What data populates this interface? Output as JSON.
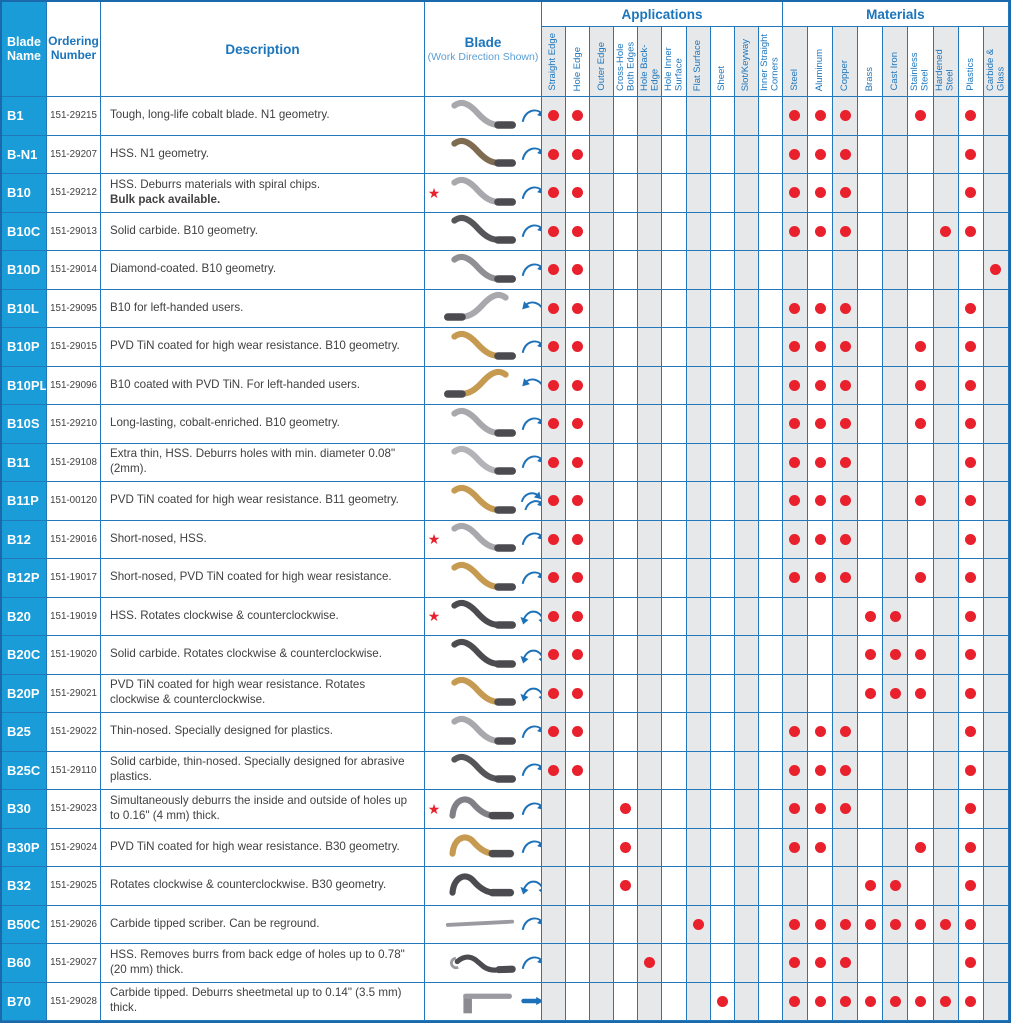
{
  "header": {
    "blade_name": "Blade\nName",
    "ordering_number": "Ordering\nNumber",
    "description": "Description",
    "blade": "Blade",
    "blade_sub": "(Work Direction Shown)",
    "applications": "Applications",
    "materials": "Materials"
  },
  "columns": {
    "applications": [
      "Straight Edge",
      "Hole Edge",
      "Outer Edge",
      "Cross-Hole Both Edges",
      "Hole Back-Edge",
      "Hole Inner Surface",
      "Flat Surface",
      "Sheet",
      "Slot/Keyway",
      "Inner Straight Corners"
    ],
    "materials": [
      "Steel",
      "Aluminum",
      "Copper",
      "Brass",
      "Cast Iron",
      "Stainless Steel",
      "Hardened Steel",
      "Plastics",
      "Carbide & Glass"
    ]
  },
  "icons": {
    "star": "★"
  },
  "colors": {
    "border": "#2377bb",
    "header_text": "#1b75bc",
    "name_bg": "#199cd8",
    "dot": "#e8212d",
    "star": "#e8212d",
    "shade": "#e7e8ea",
    "arrow": "#1d71b8"
  },
  "rows": [
    {
      "name": "B1",
      "order": "151-29215",
      "desc": "Tough, long-life cobalt blade. N1 geometry.",
      "desc_bold": "",
      "star": false,
      "shape": "s",
      "color": "#a9a9ad",
      "dir": "right",
      "arrow": "ccw",
      "apps": [
        1,
        1,
        0,
        0,
        0,
        0,
        0,
        0,
        0,
        0
      ],
      "mats": [
        1,
        1,
        1,
        0,
        0,
        1,
        0,
        1,
        0
      ]
    },
    {
      "name": "B-N1",
      "order": "151-29207",
      "desc": "HSS. N1 geometry.",
      "desc_bold": "",
      "star": false,
      "shape": "s",
      "color": "#7e6b50",
      "dir": "right",
      "arrow": "ccw",
      "apps": [
        1,
        1,
        0,
        0,
        0,
        0,
        0,
        0,
        0,
        0
      ],
      "mats": [
        1,
        1,
        1,
        0,
        0,
        0,
        0,
        1,
        0
      ]
    },
    {
      "name": "B10",
      "order": "151-29212",
      "desc": "HSS. Deburrs materials with spiral chips.",
      "desc_bold": "Bulk pack available.",
      "star": true,
      "shape": "s",
      "color": "#a9a9ad",
      "dir": "right",
      "arrow": "ccw",
      "apps": [
        1,
        1,
        0,
        0,
        0,
        0,
        0,
        0,
        0,
        0
      ],
      "mats": [
        1,
        1,
        1,
        0,
        0,
        0,
        0,
        1,
        0
      ]
    },
    {
      "name": "B10C",
      "order": "151-29013",
      "desc": "Solid carbide. B10 geometry.",
      "desc_bold": "",
      "star": false,
      "shape": "s",
      "color": "#55555a",
      "dir": "right",
      "arrow": "ccw",
      "apps": [
        1,
        1,
        0,
        0,
        0,
        0,
        0,
        0,
        0,
        0
      ],
      "mats": [
        1,
        1,
        1,
        0,
        0,
        0,
        1,
        1,
        0
      ]
    },
    {
      "name": "B10D",
      "order": "151-29014",
      "desc": "Diamond-coated. B10 geometry.",
      "desc_bold": "",
      "star": false,
      "shape": "s",
      "color": "#8f8f94",
      "dir": "right",
      "arrow": "ccw",
      "apps": [
        1,
        1,
        0,
        0,
        0,
        0,
        0,
        0,
        0,
        0
      ],
      "mats": [
        0,
        0,
        0,
        0,
        0,
        0,
        0,
        0,
        1
      ]
    },
    {
      "name": "B10L",
      "order": "151-29095",
      "desc": "B10 for left-handed users.",
      "desc_bold": "",
      "star": false,
      "shape": "s",
      "color": "#a9a9ad",
      "dir": "left",
      "arrow": "ccw-left",
      "apps": [
        1,
        1,
        0,
        0,
        0,
        0,
        0,
        0,
        0,
        0
      ],
      "mats": [
        1,
        1,
        1,
        0,
        0,
        0,
        0,
        1,
        0
      ]
    },
    {
      "name": "B10P",
      "order": "151-29015",
      "desc": "PVD TiN coated for high wear resistance. B10 geometry.",
      "desc_bold": "",
      "star": false,
      "shape": "s",
      "color": "#c69a50",
      "dir": "right",
      "arrow": "ccw",
      "apps": [
        1,
        1,
        0,
        0,
        0,
        0,
        0,
        0,
        0,
        0
      ],
      "mats": [
        1,
        1,
        1,
        0,
        0,
        1,
        0,
        1,
        0
      ]
    },
    {
      "name": "B10PL",
      "order": "151-29096",
      "desc": "B10 coated with PVD TiN. For left-handed users.",
      "desc_bold": "",
      "star": false,
      "shape": "s",
      "color": "#c69a50",
      "dir": "left",
      "arrow": "ccw-left",
      "apps": [
        1,
        1,
        0,
        0,
        0,
        0,
        0,
        0,
        0,
        0
      ],
      "mats": [
        1,
        1,
        1,
        0,
        0,
        1,
        0,
        1,
        0
      ]
    },
    {
      "name": "B10S",
      "order": "151-29210",
      "desc": "Long-lasting, cobalt-enriched. B10 geometry.",
      "desc_bold": "",
      "star": false,
      "shape": "s",
      "color": "#a9a9ad",
      "dir": "right",
      "arrow": "ccw",
      "apps": [
        1,
        1,
        0,
        0,
        0,
        0,
        0,
        0,
        0,
        0
      ],
      "mats": [
        1,
        1,
        1,
        0,
        0,
        1,
        0,
        1,
        0
      ]
    },
    {
      "name": "B11",
      "order": "151-29108",
      "desc": "Extra thin, HSS. Deburrs holes with min. diameter 0.08\" (2mm).",
      "desc_bold": "",
      "star": false,
      "shape": "s",
      "color": "#b4b4b8",
      "dir": "right",
      "arrow": "ccw",
      "apps": [
        1,
        1,
        0,
        0,
        0,
        0,
        0,
        0,
        0,
        0
      ],
      "mats": [
        1,
        1,
        1,
        0,
        0,
        0,
        0,
        1,
        0
      ]
    },
    {
      "name": "B11P",
      "order": "151-00120",
      "desc": "PVD TiN coated for high wear resistance. B11 geometry.",
      "desc_bold": "",
      "star": false,
      "shape": "s",
      "color": "#c69a50",
      "dir": "right",
      "arrow": "double",
      "apps": [
        1,
        1,
        0,
        0,
        0,
        0,
        0,
        0,
        0,
        0
      ],
      "mats": [
        1,
        1,
        1,
        0,
        0,
        1,
        0,
        1,
        0
      ]
    },
    {
      "name": "B12",
      "order": "151-29016",
      "desc": "Short-nosed, HSS.",
      "desc_bold": "",
      "star": true,
      "shape": "s",
      "color": "#a9a9ad",
      "dir": "right",
      "arrow": "ccw",
      "apps": [
        1,
        1,
        0,
        0,
        0,
        0,
        0,
        0,
        0,
        0
      ],
      "mats": [
        1,
        1,
        1,
        0,
        0,
        0,
        0,
        1,
        0
      ]
    },
    {
      "name": "B12P",
      "order": "151-19017",
      "desc": "Short-nosed, PVD TiN coated for high wear resistance.",
      "desc_bold": "",
      "star": false,
      "shape": "s",
      "color": "#c69a50",
      "dir": "right",
      "arrow": "ccw",
      "apps": [
        1,
        1,
        0,
        0,
        0,
        0,
        0,
        0,
        0,
        0
      ],
      "mats": [
        1,
        1,
        1,
        0,
        0,
        1,
        0,
        1,
        0
      ]
    },
    {
      "name": "B20",
      "order": "151-19019",
      "desc": "HSS. Rotates clockwise & counterclockwise.",
      "desc_bold": "",
      "star": true,
      "shape": "s",
      "color": "#4c4c50",
      "dir": "right",
      "arrow": "both",
      "apps": [
        1,
        1,
        0,
        0,
        0,
        0,
        0,
        0,
        0,
        0
      ],
      "mats": [
        0,
        0,
        0,
        1,
        1,
        0,
        0,
        1,
        0
      ]
    },
    {
      "name": "B20C",
      "order": "151-19020",
      "desc": "Solid carbide. Rotates clockwise & counterclockwise.",
      "desc_bold": "",
      "star": false,
      "shape": "s",
      "color": "#4c4c50",
      "dir": "right",
      "arrow": "both",
      "apps": [
        1,
        1,
        0,
        0,
        0,
        0,
        0,
        0,
        0,
        0
      ],
      "mats": [
        0,
        0,
        0,
        1,
        1,
        1,
        0,
        1,
        0
      ]
    },
    {
      "name": "B20P",
      "order": "151-29021",
      "desc": "PVD TiN coated for high wear resistance. Rotates clockwise & counterclockwise.",
      "desc_bold": "",
      "star": false,
      "shape": "s",
      "color": "#c69a50",
      "dir": "right",
      "arrow": "both",
      "apps": [
        1,
        1,
        0,
        0,
        0,
        0,
        0,
        0,
        0,
        0
      ],
      "mats": [
        0,
        0,
        0,
        1,
        1,
        1,
        0,
        1,
        0
      ]
    },
    {
      "name": "B25",
      "order": "151-29022",
      "desc": "Thin-nosed. Specially designed for plastics.",
      "desc_bold": "",
      "star": false,
      "shape": "s",
      "color": "#a9a9ad",
      "dir": "right",
      "arrow": "ccw",
      "apps": [
        1,
        1,
        0,
        0,
        0,
        0,
        0,
        0,
        0,
        0
      ],
      "mats": [
        1,
        1,
        1,
        0,
        0,
        0,
        0,
        1,
        0
      ]
    },
    {
      "name": "B25C",
      "order": "151-29110",
      "desc": "Solid carbide, thin-nosed. Specially designed for abrasive plastics.",
      "desc_bold": "",
      "star": false,
      "shape": "s",
      "color": "#55555a",
      "dir": "right",
      "arrow": "ccw",
      "apps": [
        1,
        1,
        0,
        0,
        0,
        0,
        0,
        0,
        0,
        0
      ],
      "mats": [
        1,
        1,
        1,
        0,
        0,
        0,
        0,
        1,
        0
      ]
    },
    {
      "name": "B30",
      "order": "151-29023",
      "desc": "Simultaneously deburrs the inside and outside of holes up to 0.16\" (4 mm) thick.",
      "desc_bold": "",
      "star": true,
      "shape": "hump",
      "color": "#808086",
      "dir": "right",
      "arrow": "ccw",
      "apps": [
        0,
        0,
        0,
        1,
        0,
        0,
        0,
        0,
        0,
        0
      ],
      "mats": [
        1,
        1,
        1,
        0,
        0,
        0,
        0,
        1,
        0
      ]
    },
    {
      "name": "B30P",
      "order": "151-29024",
      "desc": "PVD TiN coated for high wear resistance. B30 geometry.",
      "desc_bold": "",
      "star": false,
      "shape": "hump",
      "color": "#c69a50",
      "dir": "right",
      "arrow": "ccw",
      "apps": [
        0,
        0,
        0,
        1,
        0,
        0,
        0,
        0,
        0,
        0
      ],
      "mats": [
        1,
        1,
        0,
        0,
        0,
        1,
        0,
        1,
        0
      ]
    },
    {
      "name": "B32",
      "order": "151-29025",
      "desc": "Rotates clockwise & counterclockwise. B30 geometry.",
      "desc_bold": "",
      "star": false,
      "shape": "hump",
      "color": "#4c4c50",
      "dir": "right",
      "arrow": "both",
      "apps": [
        0,
        0,
        0,
        1,
        0,
        0,
        0,
        0,
        0,
        0
      ],
      "mats": [
        0,
        0,
        0,
        1,
        1,
        0,
        0,
        1,
        0
      ]
    },
    {
      "name": "B50C",
      "order": "151-29026",
      "desc": "Carbide tipped scriber. Can be reground.",
      "desc_bold": "",
      "star": false,
      "shape": "rod",
      "color": "#9a9aa0",
      "dir": "right",
      "arrow": "ccw",
      "apps": [
        0,
        0,
        0,
        0,
        0,
        0,
        1,
        0,
        0,
        0
      ],
      "mats": [
        1,
        1,
        1,
        1,
        1,
        1,
        1,
        1,
        0
      ]
    },
    {
      "name": "B60",
      "order": "151-29027",
      "desc": "HSS. Removes burrs from back edge of holes up to 0.78\" (20 mm) thick.",
      "desc_bold": "",
      "star": false,
      "shape": "hook",
      "color": "#4c4c50",
      "dir": "right",
      "arrow": "ccw",
      "apps": [
        0,
        0,
        0,
        0,
        1,
        0,
        0,
        0,
        0,
        0
      ],
      "mats": [
        1,
        1,
        1,
        0,
        0,
        0,
        0,
        1,
        0
      ]
    },
    {
      "name": "B70",
      "order": "151-29028",
      "desc": "Carbide tipped. Deburrs sheetmetal up to 0.14\" (3.5 mm) thick.",
      "desc_bold": "",
      "star": false,
      "shape": "tee",
      "color": "#9a9aa0",
      "dir": "right",
      "arrow": "dash",
      "apps": [
        0,
        0,
        0,
        0,
        0,
        0,
        0,
        1,
        0,
        0
      ],
      "mats": [
        1,
        1,
        1,
        1,
        1,
        1,
        1,
        1,
        0
      ]
    }
  ]
}
